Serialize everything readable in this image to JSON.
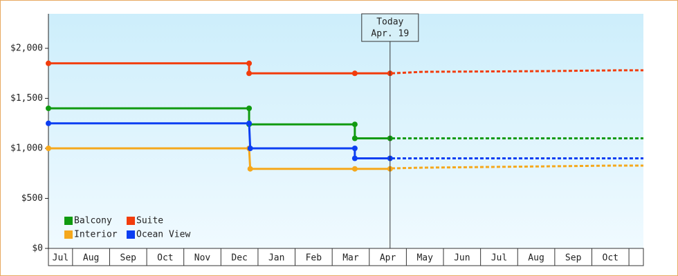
{
  "chart_data": {
    "type": "step-line",
    "ylim": [
      0,
      2345
    ],
    "yticks": [
      {
        "value": 0,
        "label": "$0"
      },
      {
        "value": 500,
        "label": "$500"
      },
      {
        "value": 1000,
        "label": "$1,000"
      },
      {
        "value": 1500,
        "label": "$1,500"
      },
      {
        "value": 2000,
        "label": "$2,000"
      }
    ],
    "xlim": [
      0.35,
      16.39
    ],
    "xticks": [
      {
        "value": 0.5,
        "label": "Jul"
      },
      {
        "value": 1.5,
        "label": "Aug"
      },
      {
        "value": 2.5,
        "label": "Sep"
      },
      {
        "value": 3.5,
        "label": "Oct"
      },
      {
        "value": 4.5,
        "label": "Nov"
      },
      {
        "value": 5.5,
        "label": "Dec"
      },
      {
        "value": 6.5,
        "label": "Jan"
      },
      {
        "value": 7.5,
        "label": "Feb"
      },
      {
        "value": 8.5,
        "label": "Mar"
      },
      {
        "value": 9.5,
        "label": "Apr"
      },
      {
        "value": 10.5,
        "label": "May"
      },
      {
        "value": 11.5,
        "label": "Jun"
      },
      {
        "value": 12.5,
        "label": "Jul"
      },
      {
        "value": 13.5,
        "label": "Aug"
      },
      {
        "value": 14.5,
        "label": "Sep"
      },
      {
        "value": 15.5,
        "label": "Oct"
      }
    ],
    "grid": false,
    "legend": "bottom-left",
    "today": {
      "x": 9.56,
      "label": "Today",
      "date": "Apr. 19"
    },
    "series": [
      {
        "name": "Balcony",
        "color": "#109a10",
        "x": [
          0.35,
          5.76,
          5.76,
          8.61,
          8.61,
          9.56
        ],
        "values": [
          1400,
          1400,
          1240,
          1240,
          1100,
          1100
        ],
        "forecast_x": [
          9.6,
          16.39
        ],
        "forecast_values": [
          1100,
          1100
        ]
      },
      {
        "name": "Suite",
        "color": "#f23c0c",
        "x": [
          0.35,
          5.76,
          5.76,
          8.61,
          9.56
        ],
        "values": [
          1850,
          1850,
          1750,
          1750,
          1750
        ],
        "forecast_x": [
          9.6,
          10.42,
          13.78,
          15.65,
          16.39
        ],
        "forecast_values": [
          1750,
          1765,
          1772,
          1780,
          1780
        ]
      },
      {
        "name": "Interior",
        "color": "#f5a81c",
        "x": [
          0.35,
          5.76,
          5.79,
          8.61,
          9.56
        ],
        "values": [
          1000,
          1000,
          795,
          795,
          795
        ],
        "forecast_x": [
          9.6,
          10.42,
          13.78,
          15.65,
          16.39
        ],
        "forecast_values": [
          800,
          807,
          820,
          828,
          828
        ]
      },
      {
        "name": "Ocean View",
        "color": "#0c3ef2",
        "x": [
          0.35,
          5.76,
          5.79,
          8.61,
          8.61,
          9.56
        ],
        "values": [
          1250,
          1250,
          1000,
          1000,
          900,
          900
        ],
        "forecast_x": [
          9.6,
          16.39
        ],
        "forecast_values": [
          900,
          900
        ]
      }
    ]
  }
}
